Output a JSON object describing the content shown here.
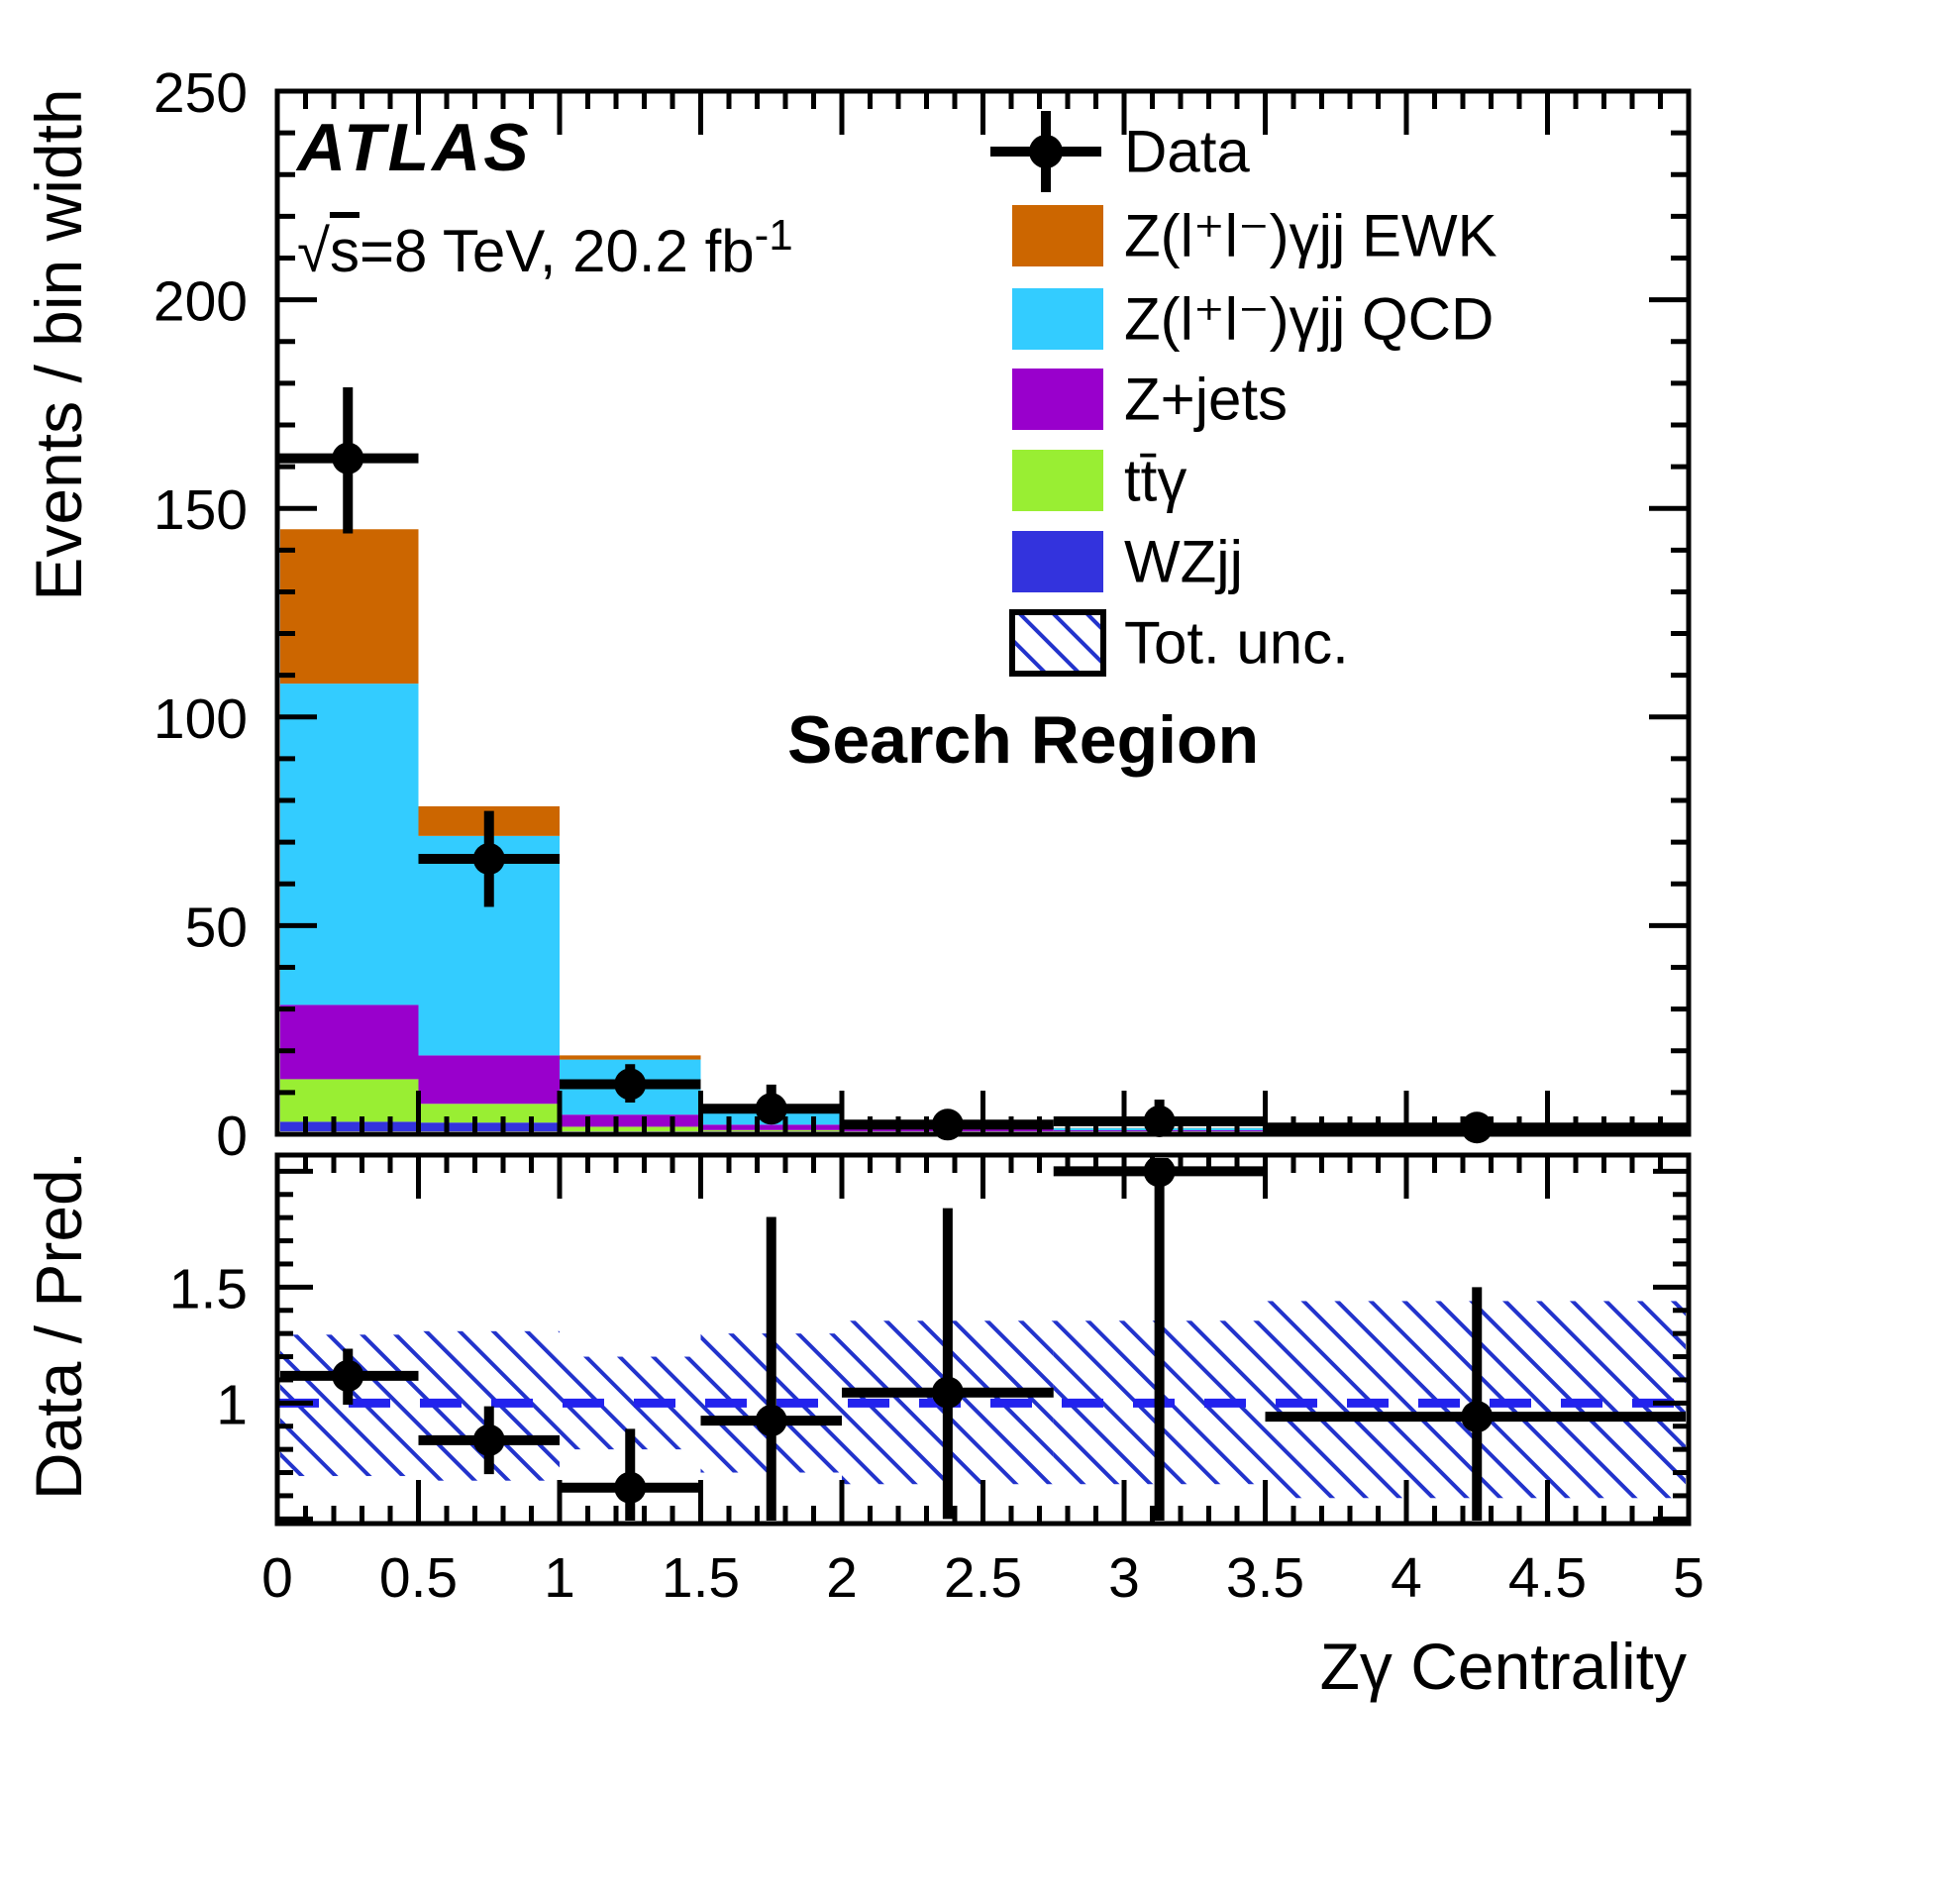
{
  "meta": {
    "experiment": "ATLAS",
    "sqrt_prefix": "√",
    "sqrt_arg": "s",
    "energy_rest": "=8 TeV, 20.2  fb",
    "energy_sup": "-1",
    "region_label": "Search Region"
  },
  "legend": {
    "items": [
      {
        "label": "Data",
        "type": "marker",
        "color": "#000000"
      },
      {
        "label": "Z(l⁺l⁻)γjj EWK",
        "type": "box",
        "color": "#CC6600"
      },
      {
        "label": "Z(l⁺l⁻)γjj QCD",
        "type": "box",
        "color": "#33CCFF"
      },
      {
        "label": "Z+jets",
        "type": "box",
        "color": "#9900CC"
      },
      {
        "label": "tt̄γ",
        "type": "box",
        "color": "#99EE33"
      },
      {
        "label": "WZjj",
        "type": "box",
        "color": "#3333DD"
      },
      {
        "label": "Tot. unc.",
        "type": "hatch",
        "color": "#2233CC"
      }
    ]
  },
  "chart_data": {
    "type": "bar",
    "subtype": "stacked-histogram-with-ratio-panel",
    "title": "",
    "xlabel": "Zγ Centrality",
    "ylabel_main": "Events / bin width",
    "ylabel_ratio": "Data / Pred.",
    "xlim": [
      0,
      5
    ],
    "ylim_main": [
      0,
      250
    ],
    "ylim_ratio": [
      0.48,
      2.07
    ],
    "x_major_tick": 0.5,
    "x_minor_tick": 0.1,
    "y_main_major_tick": 50,
    "y_main_minor_tick": 10,
    "y_ratio_labeled_ticks": [
      1,
      1.5
    ],
    "y_ratio_major_tick": 0.5,
    "y_ratio_minor_tick": 0.1,
    "grid": false,
    "legend_position": "top-right",
    "bin_edges": [
      0,
      0.5,
      1,
      1.5,
      2,
      2.75,
      3.5,
      5
    ],
    "series": [
      {
        "name": "WZjj",
        "color": "#3333DD",
        "values": [
          3.0,
          2.8,
          0.7,
          0.5,
          0.3,
          0.25,
          0.3
        ]
      },
      {
        "name": "tt̄γ",
        "color": "#99EE33",
        "values": [
          10.2,
          4.5,
          1.1,
          0.5,
          0.15,
          0.1,
          0.05
        ]
      },
      {
        "name": "Z+jets",
        "color": "#9900CC",
        "values": [
          17.8,
          11.6,
          2.9,
          1.3,
          0.9,
          0.6,
          0.45
        ]
      },
      {
        "name": "Z(l+l-)γjj QCD",
        "color": "#33CCFF",
        "values": [
          77.0,
          52.6,
          13.2,
          4.0,
          0.75,
          0.55,
          0.85
        ]
      },
      {
        "name": "Z(l+l-)γjj EWK",
        "color": "#CC6600",
        "values": [
          37.0,
          7.1,
          1.0,
          0.3,
          0.1,
          0.05,
          0.05
        ]
      }
    ],
    "stack_totals": [
      145.0,
      78.6,
      18.9,
      6.6,
      2.2,
      1.55,
      1.7
    ],
    "data_points": {
      "x": [
        0.25,
        0.75,
        1.25,
        1.75,
        2.375,
        3.125,
        4.25
      ],
      "y": [
        162,
        66,
        12,
        6.1,
        2.3,
        3.1,
        1.6
      ],
      "err_up": [
        17,
        11.5,
        4.8,
        5.8,
        1.75,
        5.2,
        0.95
      ],
      "err_dn": [
        18,
        11.5,
        4.4,
        3.3,
        1.2,
        2.35,
        0.8
      ]
    },
    "ratio_ref_line": 1.0,
    "ratio_ref_color": "#2222EE",
    "uncertainty_band_ratio": {
      "lo": [
        0.685,
        0.665,
        0.8,
        0.7,
        0.65,
        0.65,
        0.59
      ],
      "hi": [
        1.295,
        1.31,
        1.2,
        1.3,
        1.355,
        1.355,
        1.44
      ]
    },
    "hatch_color": "#2233CC"
  }
}
